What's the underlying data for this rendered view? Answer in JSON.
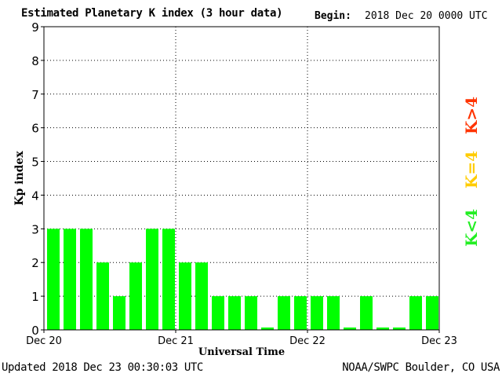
{
  "header": {
    "title": "Estimated Planetary K index (3 hour data)",
    "begin_label": "Begin:",
    "begin_value": "2018 Dec 20 0000 UTC"
  },
  "footer": {
    "updated": "Updated 2018 Dec 23 00:30:03 UTC",
    "credit": "NOAA/SWPC Boulder, CO USA"
  },
  "legend": {
    "items": [
      {
        "label": "K>4",
        "color": "#ff3300"
      },
      {
        "label": "K=4",
        "color": "#ffcc00"
      },
      {
        "label": "K<4",
        "color": "#22ee22"
      }
    ]
  },
  "colors": {
    "bar": "#00ff00",
    "grid": "#000000"
  },
  "chart_data": {
    "type": "bar",
    "title": "Estimated Planetary K index (3 hour data)",
    "xlabel": "Universal Time",
    "ylabel": "Kp index",
    "ylim": [
      0,
      9
    ],
    "yticks": [
      0,
      1,
      2,
      3,
      4,
      5,
      6,
      7,
      8,
      9
    ],
    "xtick_labels": [
      "Dec 20",
      "Dec 21",
      "Dec 22",
      "Dec 23"
    ],
    "interval_hours": 3,
    "grid": true,
    "values": [
      3,
      3,
      3,
      2,
      1,
      2,
      3,
      3,
      2,
      2,
      1,
      1,
      1,
      0.07,
      1,
      1,
      1,
      1,
      0.07,
      1,
      0.07,
      0.07,
      1,
      1
    ]
  }
}
